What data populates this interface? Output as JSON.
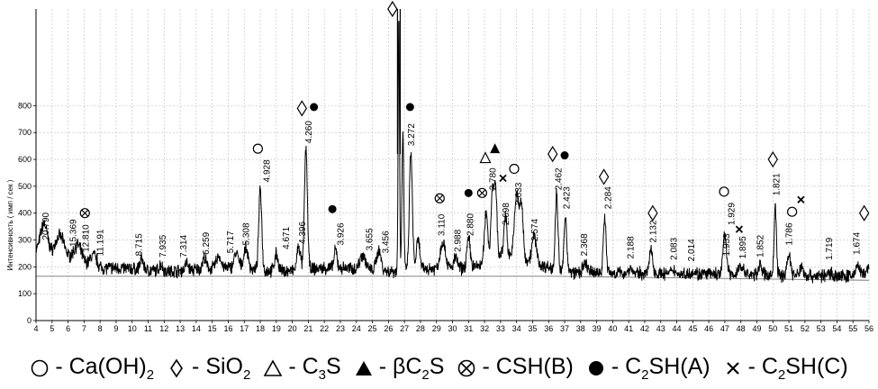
{
  "chart_data": {
    "type": "line",
    "title": "",
    "xlabel": "",
    "ylabel": "Интенсивность ( имп / сек )",
    "xlim": [
      4,
      56
    ],
    "ylim": [
      0,
      1160
    ],
    "x_ticks": [
      4,
      5,
      6,
      7,
      8,
      9,
      10,
      11,
      12,
      13,
      14,
      15,
      16,
      17,
      18,
      19,
      20,
      21,
      22,
      23,
      24,
      25,
      26,
      27,
      28,
      29,
      30,
      31,
      32,
      33,
      34,
      35,
      36,
      37,
      38,
      39,
      40,
      41,
      42,
      43,
      44,
      45,
      46,
      47,
      48,
      49,
      50,
      51,
      52,
      53,
      54,
      55,
      56
    ],
    "y_ticks": [
      0,
      100,
      200,
      300,
      400,
      500,
      600,
      700,
      800
    ],
    "grid": true,
    "baseline": {
      "start": 165,
      "end": 150,
      "drop_at": 36.5
    },
    "peaks": [
      {
        "x": 4.5,
        "y": 300,
        "w": 0.3
      },
      {
        "x": 5.5,
        "y": 270,
        "w": 0.4
      },
      {
        "x": 6.6,
        "y": 255,
        "w": 0.35
      },
      {
        "x": 7.6,
        "y": 235,
        "w": 0.3
      },
      {
        "x": 10.6,
        "y": 230,
        "w": 0.15
      },
      {
        "x": 11.8,
        "y": 215,
        "w": 0.15
      },
      {
        "x": 13.4,
        "y": 215,
        "w": 0.15
      },
      {
        "x": 14.5,
        "y": 230,
        "w": 0.15
      },
      {
        "x": 15.4,
        "y": 235,
        "w": 0.2
      },
      {
        "x": 16.5,
        "y": 245,
        "w": 0.2
      },
      {
        "x": 17.1,
        "y": 265,
        "w": 0.2
      },
      {
        "x": 18.0,
        "y": 495,
        "w": 0.13
      },
      {
        "x": 19.0,
        "y": 255,
        "w": 0.15
      },
      {
        "x": 20.4,
        "y": 280,
        "w": 0.15
      },
      {
        "x": 20.85,
        "y": 640,
        "w": 0.13
      },
      {
        "x": 22.7,
        "y": 255,
        "w": 0.13
      },
      {
        "x": 24.4,
        "y": 245,
        "w": 0.25
      },
      {
        "x": 25.4,
        "y": 265,
        "w": 0.2
      },
      {
        "x": 26.65,
        "y": 1160,
        "w": 0.06
      },
      {
        "x": 26.9,
        "y": 700,
        "w": 0.08
      },
      {
        "x": 27.4,
        "y": 630,
        "w": 0.13
      },
      {
        "x": 27.85,
        "y": 300,
        "w": 0.15
      },
      {
        "x": 29.4,
        "y": 290,
        "w": 0.22
      },
      {
        "x": 30.2,
        "y": 230,
        "w": 0.15
      },
      {
        "x": 31.0,
        "y": 300,
        "w": 0.15
      },
      {
        "x": 32.1,
        "y": 380,
        "w": 0.15
      },
      {
        "x": 32.5,
        "y": 460,
        "w": 0.13
      },
      {
        "x": 32.7,
        "y": 430,
        "w": 0.12
      },
      {
        "x": 33.3,
        "y": 340,
        "w": 0.13
      },
      {
        "x": 34.0,
        "y": 420,
        "w": 0.18
      },
      {
        "x": 34.3,
        "y": 385,
        "w": 0.15
      },
      {
        "x": 35.1,
        "y": 290,
        "w": 0.2
      },
      {
        "x": 36.5,
        "y": 470,
        "w": 0.12
      },
      {
        "x": 37.05,
        "y": 400,
        "w": 0.12
      },
      {
        "x": 38.3,
        "y": 220,
        "w": 0.2
      },
      {
        "x": 39.5,
        "y": 395,
        "w": 0.12
      },
      {
        "x": 41.1,
        "y": 210,
        "w": 0.15
      },
      {
        "x": 42.4,
        "y": 275,
        "w": 0.15
      },
      {
        "x": 43.8,
        "y": 205,
        "w": 0.15
      },
      {
        "x": 45.0,
        "y": 200,
        "w": 0.2
      },
      {
        "x": 47.0,
        "y": 340,
        "w": 0.15
      },
      {
        "x": 48.0,
        "y": 225,
        "w": 0.2
      },
      {
        "x": 49.2,
        "y": 230,
        "w": 0.15
      },
      {
        "x": 50.15,
        "y": 445,
        "w": 0.1
      },
      {
        "x": 51.0,
        "y": 270,
        "w": 0.15
      },
      {
        "x": 51.8,
        "y": 225,
        "w": 0.15
      },
      {
        "x": 53.6,
        "y": 205,
        "w": 0.15
      },
      {
        "x": 55.3,
        "y": 230,
        "w": 0.2
      },
      {
        "x": 55.9,
        "y": 220,
        "w": 0.15
      }
    ],
    "d_labels": [
      {
        "x": 4.8,
        "y": 290,
        "text": "20.790"
      },
      {
        "x": 6.5,
        "y": 265,
        "text": "15.369"
      },
      {
        "x": 7.3,
        "y": 245,
        "text": "12.810"
      },
      {
        "x": 8.2,
        "y": 230,
        "text": "11.191"
      },
      {
        "x": 10.6,
        "y": 230,
        "text": "8.715"
      },
      {
        "x": 12.1,
        "y": 225,
        "text": "7.935"
      },
      {
        "x": 13.4,
        "y": 225,
        "text": "7.314"
      },
      {
        "x": 14.8,
        "y": 235,
        "text": "6.259"
      },
      {
        "x": 16.3,
        "y": 240,
        "text": "5.717"
      },
      {
        "x": 17.3,
        "y": 270,
        "text": "5.308"
      },
      {
        "x": 18.6,
        "y": 505,
        "text": "4.928"
      },
      {
        "x": 19.8,
        "y": 255,
        "text": "4.671"
      },
      {
        "x": 20.8,
        "y": 275,
        "text": "4.396"
      },
      {
        "x": 21.2,
        "y": 650,
        "text": "4.260"
      },
      {
        "x": 23.2,
        "y": 270,
        "text": "3.926"
      },
      {
        "x": 25.0,
        "y": 250,
        "text": "3.655"
      },
      {
        "x": 26.0,
        "y": 240,
        "text": "3.456"
      },
      {
        "x": 27.6,
        "y": 640,
        "text": "3.272"
      },
      {
        "x": 29.5,
        "y": 305,
        "text": "3.110"
      },
      {
        "x": 30.5,
        "y": 245,
        "text": "2.988"
      },
      {
        "x": 31.3,
        "y": 305,
        "text": "2.880"
      },
      {
        "x": 32.7,
        "y": 475,
        "text": "2.780"
      },
      {
        "x": 33.5,
        "y": 345,
        "text": "2.698"
      },
      {
        "x": 34.3,
        "y": 420,
        "text": "2.633"
      },
      {
        "x": 35.3,
        "y": 285,
        "text": "2.574"
      },
      {
        "x": 36.8,
        "y": 475,
        "text": "2.462"
      },
      {
        "x": 37.3,
        "y": 405,
        "text": "2.423"
      },
      {
        "x": 38.4,
        "y": 230,
        "text": "2.368"
      },
      {
        "x": 39.9,
        "y": 405,
        "text": "2.284"
      },
      {
        "x": 41.3,
        "y": 220,
        "text": "2.188"
      },
      {
        "x": 42.7,
        "y": 280,
        "text": "2.132"
      },
      {
        "x": 44.0,
        "y": 215,
        "text": "2.083"
      },
      {
        "x": 45.1,
        "y": 210,
        "text": "2.014"
      },
      {
        "x": 47.3,
        "y": 230,
        "text": "1.953"
      },
      {
        "x": 47.6,
        "y": 345,
        "text": "1.929"
      },
      {
        "x": 48.3,
        "y": 220,
        "text": "1.895"
      },
      {
        "x": 49.4,
        "y": 225,
        "text": "1.852"
      },
      {
        "x": 50.4,
        "y": 455,
        "text": "1.821"
      },
      {
        "x": 51.2,
        "y": 270,
        "text": "1.786"
      },
      {
        "x": 53.7,
        "y": 215,
        "text": "1.719"
      },
      {
        "x": 55.4,
        "y": 235,
        "text": "1.674"
      }
    ],
    "markers": [
      {
        "x": 7.05,
        "y": 400,
        "shape": "circle-x"
      },
      {
        "x": 17.85,
        "y": 640,
        "shape": "circle"
      },
      {
        "x": 20.6,
        "y": 790,
        "shape": "diamond"
      },
      {
        "x": 21.35,
        "y": 795,
        "shape": "dot"
      },
      {
        "x": 22.5,
        "y": 415,
        "shape": "dot"
      },
      {
        "x": 26.25,
        "y": 1160,
        "shape": "diamond"
      },
      {
        "x": 27.35,
        "y": 795,
        "shape": "dot"
      },
      {
        "x": 29.2,
        "y": 455,
        "shape": "circle-x"
      },
      {
        "x": 31.0,
        "y": 475,
        "shape": "dot"
      },
      {
        "x": 31.85,
        "y": 475,
        "shape": "circle-x"
      },
      {
        "x": 32.05,
        "y": 605,
        "shape": "triangle"
      },
      {
        "x": 32.65,
        "y": 640,
        "shape": "triangle-filled"
      },
      {
        "x": 33.15,
        "y": 530,
        "shape": "x"
      },
      {
        "x": 33.85,
        "y": 565,
        "shape": "circle"
      },
      {
        "x": 36.25,
        "y": 620,
        "shape": "diamond"
      },
      {
        "x": 37.0,
        "y": 615,
        "shape": "dot"
      },
      {
        "x": 39.45,
        "y": 535,
        "shape": "diamond"
      },
      {
        "x": 42.5,
        "y": 400,
        "shape": "diamond"
      },
      {
        "x": 46.95,
        "y": 480,
        "shape": "circle"
      },
      {
        "x": 47.9,
        "y": 340,
        "shape": "x"
      },
      {
        "x": 50.0,
        "y": 600,
        "shape": "diamond"
      },
      {
        "x": 51.2,
        "y": 405,
        "shape": "circle"
      },
      {
        "x": 51.75,
        "y": 450,
        "shape": "x"
      },
      {
        "x": 55.7,
        "y": 400,
        "shape": "diamond"
      }
    ]
  },
  "legend": [
    {
      "symbol": "circle",
      "text": " - Ca(OH)",
      "sub": "2",
      "after": ""
    },
    {
      "symbol": "diamond",
      "text": " - SiO",
      "sub": "2",
      "after": ""
    },
    {
      "symbol": "triangle",
      "text": " - C",
      "sub": "3",
      "after": "S"
    },
    {
      "symbol": "triangle-filled",
      "text": " - βC",
      "sub": "2",
      "after": "S"
    },
    {
      "symbol": "circle-x",
      "text": " - CSH(B)",
      "sub": "",
      "after": ""
    },
    {
      "symbol": "dot",
      "text": " - C",
      "sub": "2",
      "after": "SH(A)"
    },
    {
      "symbol": "x",
      "text": " - C",
      "sub": "2",
      "after": "SH(C)"
    }
  ]
}
